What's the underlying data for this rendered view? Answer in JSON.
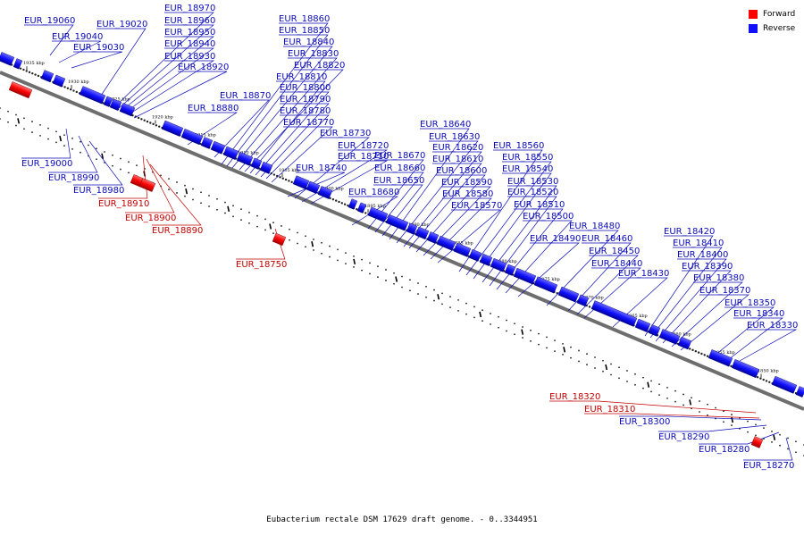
{
  "legend": {
    "forward_label": "Forward",
    "reverse_label": "Reverse",
    "forward_color": "#ff0000",
    "reverse_color": "#1010ff"
  },
  "caption": "Eubacterium rectale DSM 17629 draft genome. - 0..3344951",
  "scale_labels": [
    "1935 kbp",
    "1930 kbp",
    "1925 kbp",
    "1920 kbp",
    "1915 kbp",
    "1910 kbp",
    "1905 kbp",
    "1900 kbp",
    "1895 kbp",
    "1890 kbp",
    "1885 kbp",
    "1880 kbp",
    "1875 kbp",
    "1870 kbp",
    "1865 kbp",
    "1860 kbp",
    "1855 kbp",
    "1850 kbp"
  ],
  "genes_reverse": [
    "EUR_19060",
    "EUR_19040",
    "EUR_19030",
    "EUR_19020",
    "EUR_18970",
    "EUR_18960",
    "EUR_18950",
    "EUR_18940",
    "EUR_18930",
    "EUR_18920",
    "EUR_18880",
    "EUR_18870",
    "EUR_18860",
    "EUR_18850",
    "EUR_18840",
    "EUR_18830",
    "EUR_18820",
    "EUR_18810",
    "EUR_18800",
    "EUR_18790",
    "EUR_18780",
    "EUR_18770",
    "EUR_18730",
    "EUR_18720",
    "EUR_18710",
    "EUR_18740",
    "EUR_18680",
    "EUR_18670",
    "EUR_18660",
    "EUR_18650",
    "EUR_18640",
    "EUR_18630",
    "EUR_18620",
    "EUR_18610",
    "EUR_18600",
    "EUR_18590",
    "EUR_18580",
    "EUR_18570",
    "EUR_18560",
    "EUR_18550",
    "EUR_18540",
    "EUR_18530",
    "EUR_18520",
    "EUR_18510",
    "EUR_18500",
    "EUR_18490",
    "EUR_18480",
    "EUR_18460",
    "EUR_18450",
    "EUR_18440",
    "EUR_18430",
    "EUR_18420",
    "EUR_18410",
    "EUR_18400",
    "EUR_18390",
    "EUR_18380",
    "EUR_18370",
    "EUR_18350",
    "EUR_18340",
    "EUR_18330",
    "EUR_19000",
    "EUR_18990",
    "EUR_18980",
    "EUR_18300",
    "EUR_18290",
    "EUR_18280",
    "EUR_18270"
  ],
  "genes_forward": [
    "EUR_18910",
    "EUR_18900",
    "EUR_18890",
    "EUR_18750",
    "EUR_18320",
    "EUR_18310"
  ]
}
